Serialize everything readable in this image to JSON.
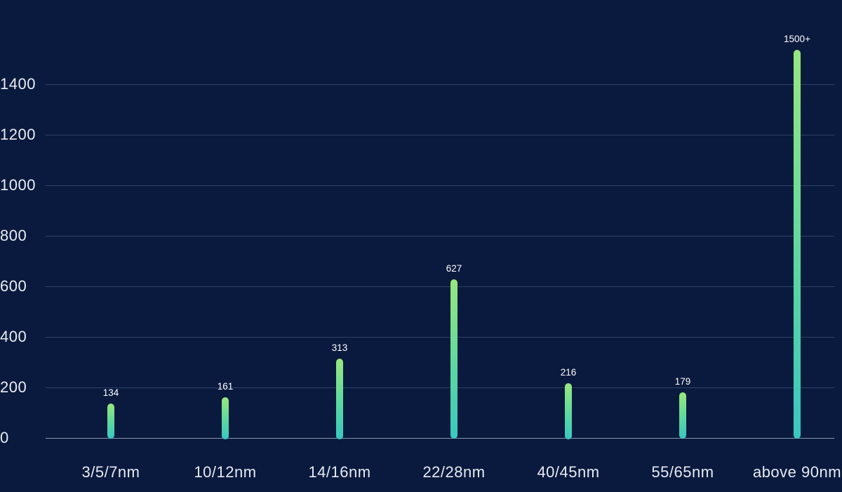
{
  "chart_data": {
    "type": "bar",
    "title": "",
    "xlabel": "",
    "ylabel": "",
    "categories": [
      "3/5/7nm",
      "10/12nm",
      "14/16nm",
      "22/28nm",
      "40/45nm",
      "55/65nm",
      "above 90nm"
    ],
    "values": [
      134,
      161,
      313,
      627,
      216,
      179,
      1500
    ],
    "value_labels": [
      "134",
      "161",
      "313",
      "627",
      "216",
      "179",
      "1500+"
    ],
    "bar_draw_values": [
      134,
      161,
      313,
      627,
      216,
      179,
      1535
    ],
    "ylim": [
      0,
      1400
    ],
    "yticks": [
      0,
      200,
      400,
      600,
      800,
      1000,
      1200,
      1400
    ],
    "grid": true,
    "legend_position": "none",
    "colors": {
      "background": "#0a1a3e",
      "bar_gradient_top": "#98e87d",
      "bar_gradient_bottom": "#38c8c0",
      "gridline": "#2e4166",
      "baseline": "#8494ad",
      "axis_text": "#e8ecf3",
      "value_text": "#ffffff"
    }
  }
}
